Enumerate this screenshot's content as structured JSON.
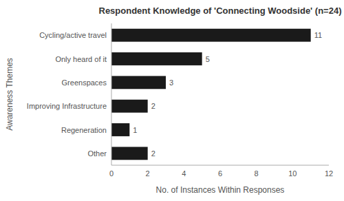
{
  "chart_data": {
    "type": "bar",
    "orientation": "horizontal",
    "title": "Respondent Knowledge of 'Connecting Woodside' (n=24)",
    "categories": [
      "Cycling/active travel",
      "Only heard of it",
      "Greenspaces",
      "Improving Infrastructure",
      "Regeneration",
      "Other"
    ],
    "values": [
      11,
      5,
      3,
      2,
      1,
      2
    ],
    "color": "#1a1a1a",
    "x_label": "No. of Instances Within Responses",
    "y_label": "Awareness Themes",
    "xlim": [
      0,
      12
    ],
    "xticks": [
      0,
      2,
      4,
      6,
      8,
      10,
      12
    ],
    "data_labels": true,
    "grid": false
  }
}
